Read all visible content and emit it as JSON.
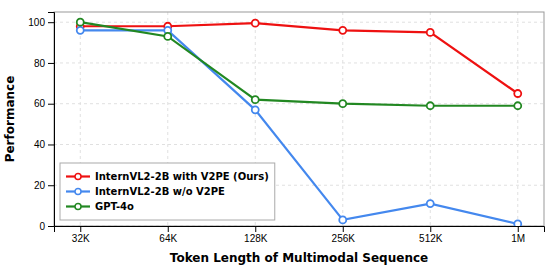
{
  "chart_data": {
    "type": "line",
    "categories": [
      "32K",
      "64K",
      "128K",
      "256K",
      "512K",
      "1M"
    ],
    "series": [
      {
        "name": "InternVL2-2B with V2PE (Ours)",
        "color": "#ee1111",
        "values": [
          98,
          98,
          99.5,
          96,
          95,
          65
        ]
      },
      {
        "name": "InternVL2-2B w/o V2PE",
        "color": "#4488ee",
        "values": [
          96,
          96,
          57,
          3,
          11,
          1
        ]
      },
      {
        "name": "GPT-4o",
        "color": "#228822",
        "values": [
          100,
          93,
          62,
          60,
          59,
          59
        ]
      }
    ],
    "xlabel": "Token Length of Multimodal Sequence",
    "ylabel": "Performance",
    "ylim": [
      0,
      105
    ],
    "yticks": [
      0,
      20,
      40,
      60,
      80,
      100
    ],
    "grid": true,
    "legend": "lower left",
    "marker": "o"
  }
}
